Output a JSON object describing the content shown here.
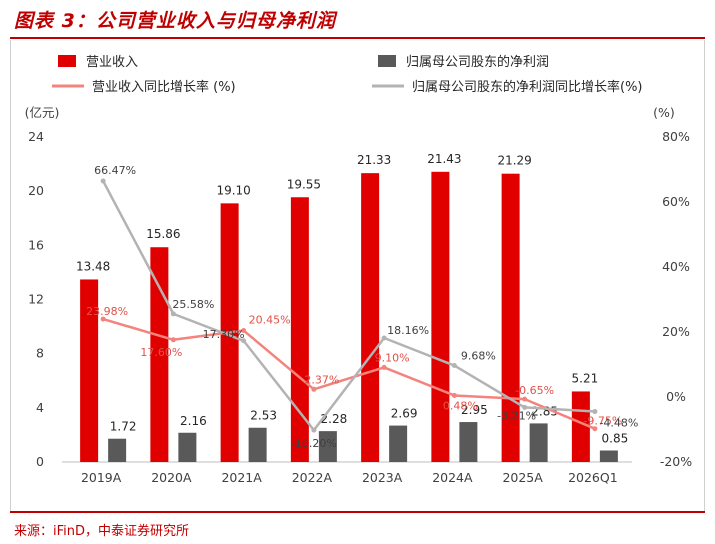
{
  "title": "图表 3：公司营业收入与归母净利润",
  "source": "来源：iFinD，中泰证券研究所",
  "chart_data": {
    "type": "bar",
    "categories": [
      "2019A",
      "2020A",
      "2021A",
      "2022A",
      "2023A",
      "2024A",
      "2025A",
      "2026Q1"
    ],
    "left_axis_unit": "(亿元)",
    "right_axis_unit": "(%)",
    "ylim_left": [
      0,
      24
    ],
    "ylim_right": [
      -20,
      80
    ],
    "left_ticks": [
      "0",
      "4",
      "8",
      "12",
      "16",
      "20",
      "24"
    ],
    "right_ticks": [
      "-20%",
      "0%",
      "20%",
      "40%",
      "60%",
      "80%"
    ],
    "series": [
      {
        "name": "营业收入",
        "kind": "bar",
        "axis": "left",
        "color": "#e00000",
        "values": [
          13.48,
          15.86,
          19.1,
          19.55,
          21.33,
          21.43,
          21.29,
          5.21
        ],
        "labels": [
          "13.48",
          "15.86",
          "19.10",
          "19.55",
          "21.33",
          "21.43",
          "21.29",
          "5.21"
        ]
      },
      {
        "name": "归属母公司股东的净利润",
        "kind": "bar",
        "axis": "left",
        "color": "#595959",
        "values": [
          1.72,
          2.16,
          2.53,
          2.28,
          2.69,
          2.95,
          2.85,
          0.85
        ],
        "labels": [
          "1.72",
          "2.16",
          "2.53",
          "2.28",
          "2.69",
          "2.95",
          "2.85",
          "0.85"
        ]
      },
      {
        "name": "营业收入同比增长率 (%)",
        "kind": "line",
        "axis": "right",
        "color": "#f4837d",
        "values": [
          23.98,
          17.6,
          20.45,
          2.37,
          9.1,
          0.48,
          -0.65,
          -9.75
        ],
        "labels": [
          "23.98%",
          "17.60%",
          "20.45%",
          "2.37%",
          "9.10%",
          "0.48%",
          "-0.65%",
          "-9.75%"
        ]
      },
      {
        "name": "归属母公司股东的净利润同比增长率(%)",
        "kind": "line",
        "axis": "right",
        "color": "#b3b3b3",
        "values": [
          66.47,
          25.58,
          17.3,
          -10.2,
          18.16,
          9.68,
          -3.21,
          -4.48
        ],
        "labels": [
          "66.47%",
          "25.58%",
          "17.30%",
          "-10.20%",
          "18.16%",
          "9.68%",
          "-3.21%",
          "-4.48%"
        ]
      }
    ]
  }
}
